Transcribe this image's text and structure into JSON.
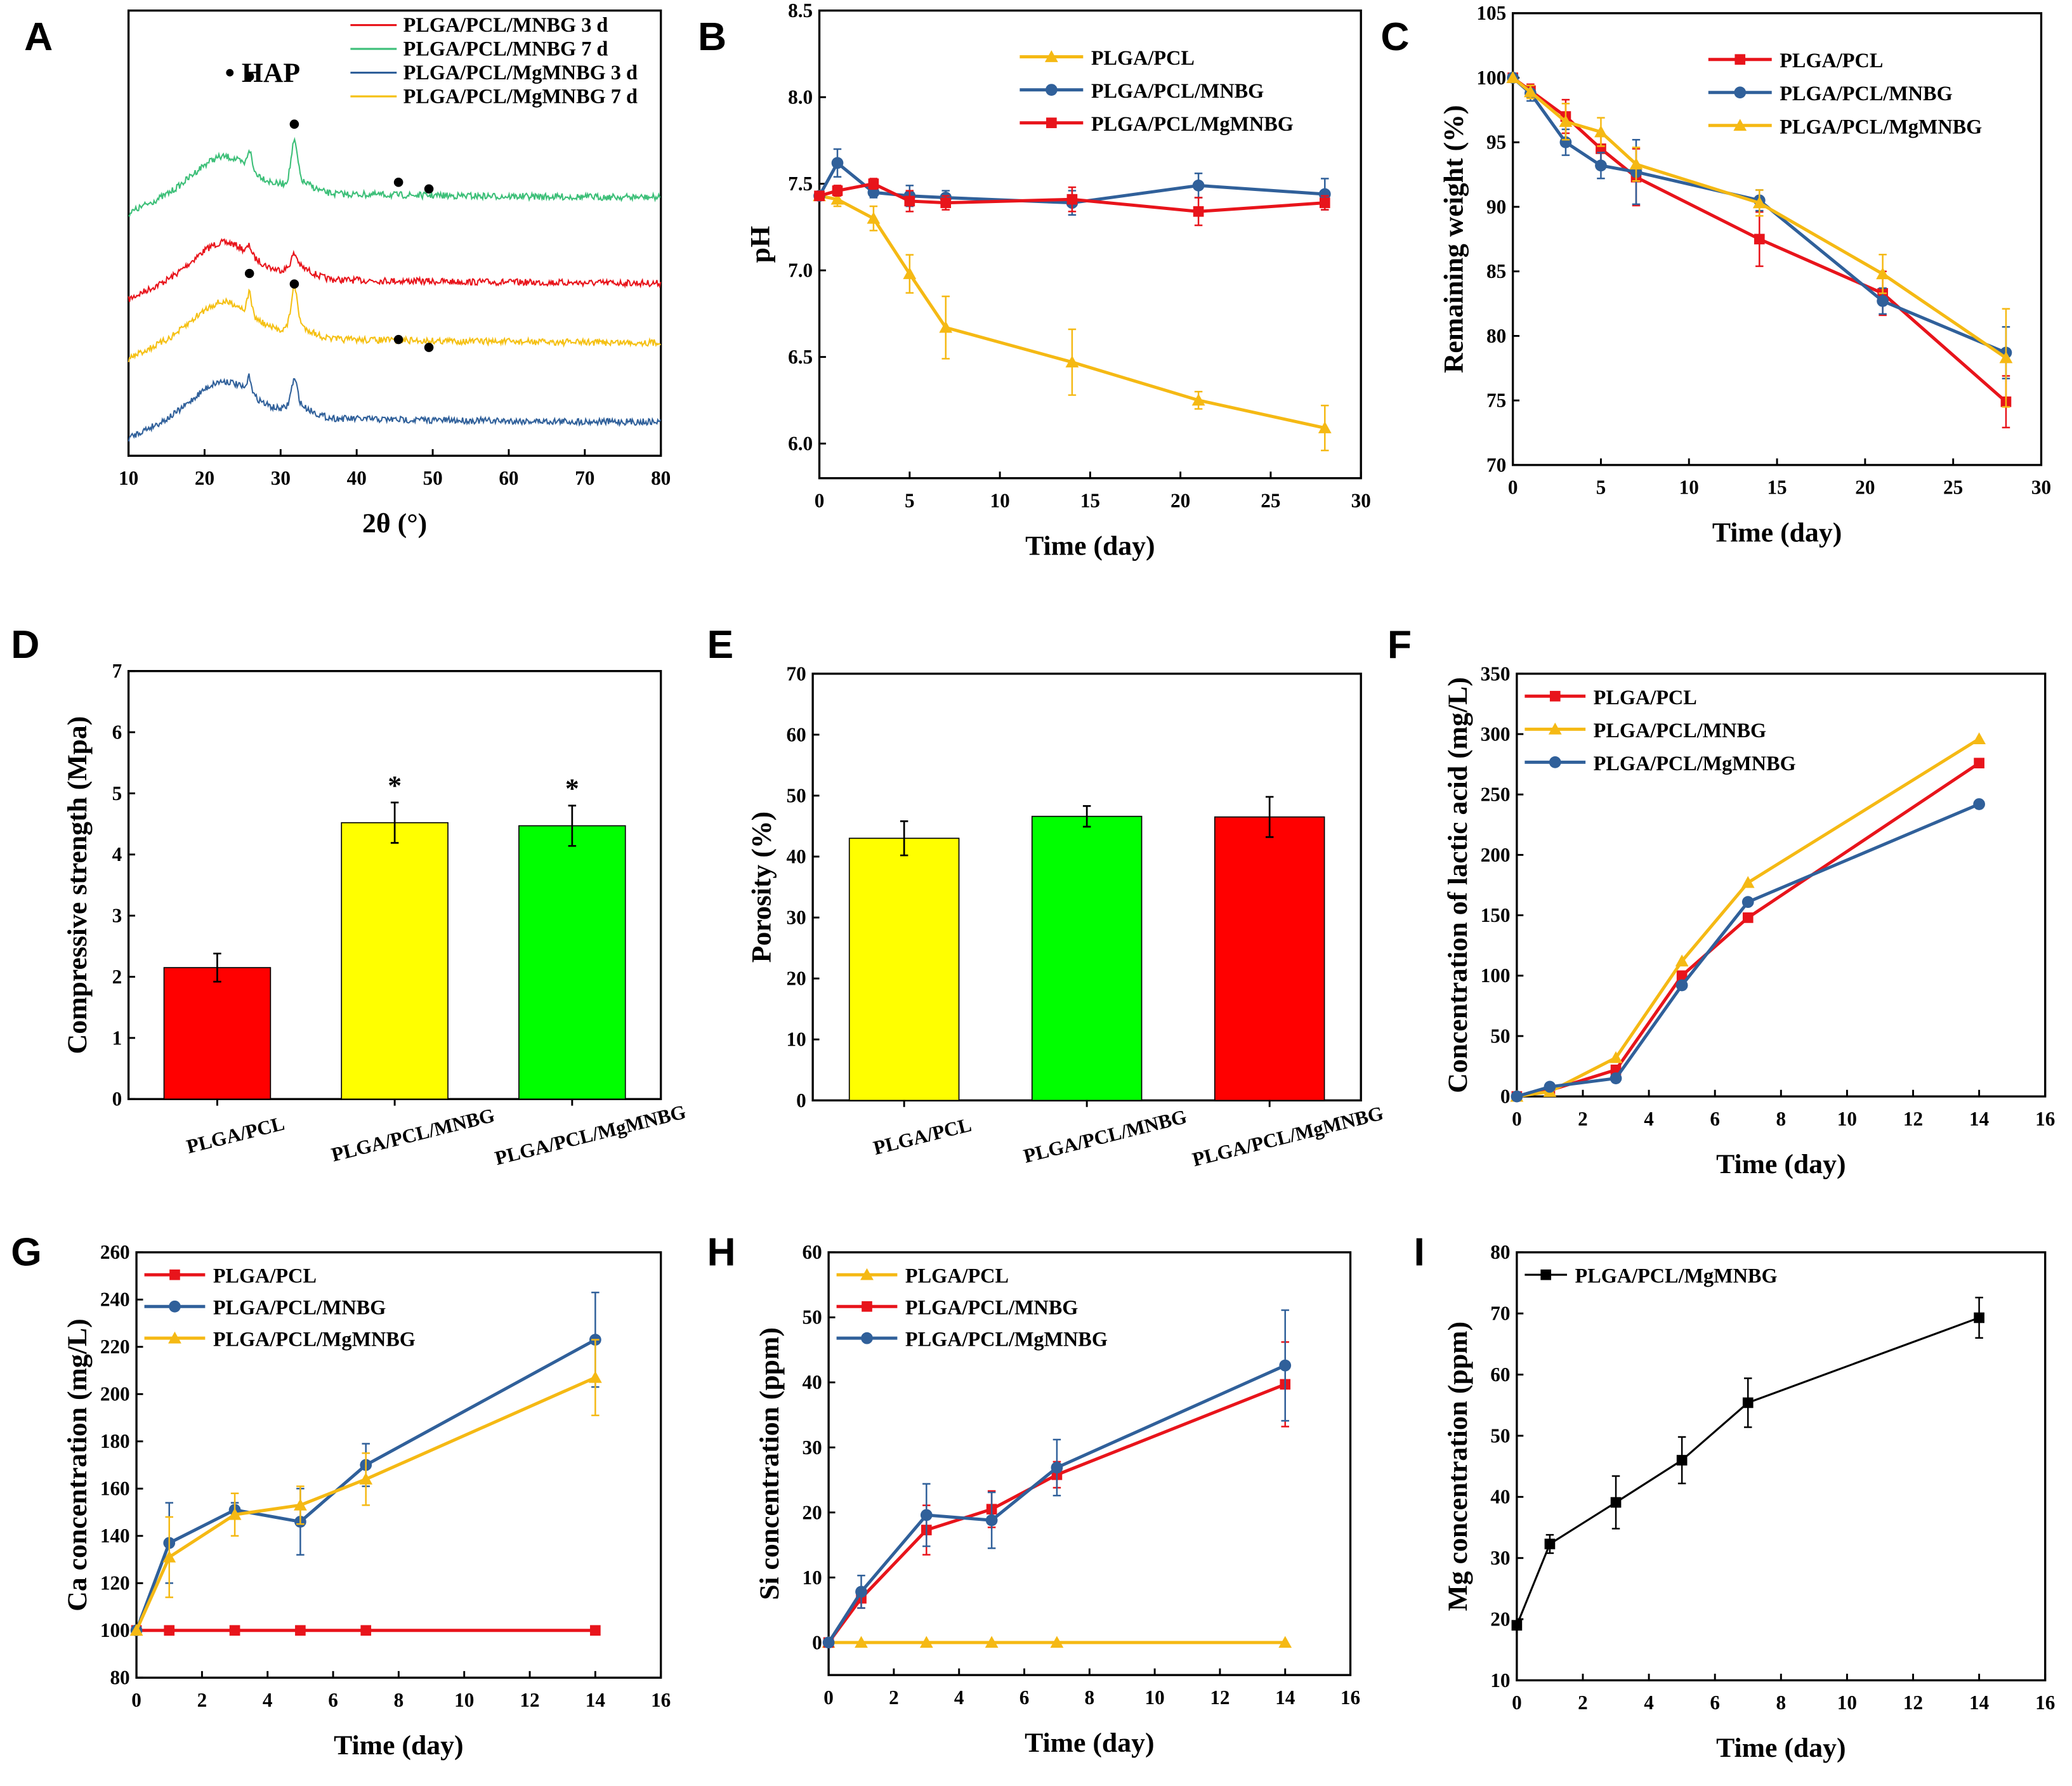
{
  "chart_data": [
    {
      "panel": "A",
      "type": "line",
      "xlabel": "2θ (°)",
      "ylabel": "",
      "xlim": [
        10,
        80
      ],
      "xticks": [
        "10",
        "20",
        "30",
        "40",
        "50",
        "60",
        "70",
        "80"
      ],
      "yticks": [],
      "legend_placement": "top-right",
      "grid": false,
      "annotation": "• HAP",
      "hap_peaks": [
        25.9,
        31.8,
        45.5,
        49.5
      ],
      "series": [
        {
          "name": "PLGA/PCL/MNBG 3 d",
          "color": "#e8141b"
        },
        {
          "name": "PLGA/PCL/MNBG 7 d",
          "color": "#3cbf78"
        },
        {
          "name": "PLGA/PCL/MgMNBG 3 d",
          "color": "#30609a"
        },
        {
          "name": "PLGA/PCL/MgMNBG 7 d",
          "color": "#f5c013"
        }
      ]
    },
    {
      "panel": "B",
      "type": "line",
      "xlabel": "Time (day)",
      "ylabel": "pH",
      "xlim": [
        0,
        30
      ],
      "ylim": [
        5.8,
        8.5
      ],
      "xticks": [
        "0",
        "5",
        "10",
        "15",
        "20",
        "25",
        "30"
      ],
      "yticks": [
        "6.0",
        "6.5",
        "7.0",
        "7.5",
        "8.0",
        "8.5"
      ],
      "legend_placement": "top-right",
      "grid": false,
      "x": [
        0,
        1,
        3,
        5,
        7,
        14,
        21,
        28
      ],
      "series": [
        {
          "name": "PLGA/PCL",
          "color": "#f5b914",
          "marker": "triangle",
          "values": [
            7.43,
            7.41,
            7.3,
            6.98,
            6.67,
            6.47,
            6.25,
            6.09
          ],
          "errors": [
            0.02,
            0.04,
            0.07,
            0.11,
            0.18,
            0.19,
            0.05,
            0.13
          ]
        },
        {
          "name": "PLGA/PCL/MNBG",
          "color": "#30609a",
          "marker": "circle",
          "values": [
            7.43,
            7.62,
            7.45,
            7.43,
            7.42,
            7.39,
            7.49,
            7.44
          ],
          "errors": [
            0,
            0.08,
            0.03,
            0.06,
            0.04,
            0.07,
            0.07,
            0.09
          ]
        },
        {
          "name": "PLGA/PCL/MgMNBG",
          "color": "#e8141b",
          "marker": "square",
          "values": [
            7.43,
            7.46,
            7.5,
            7.4,
            7.39,
            7.41,
            7.34,
            7.39
          ],
          "errors": [
            0,
            0.03,
            0.03,
            0.06,
            0.04,
            0.07,
            0.08,
            0.04
          ]
        }
      ]
    },
    {
      "panel": "C",
      "type": "line",
      "xlabel": "Time (day)",
      "ylabel": "Remaining weight (%)",
      "xlim": [
        0,
        30
      ],
      "ylim": [
        70,
        105
      ],
      "xticks": [
        "0",
        "5",
        "10",
        "15",
        "20",
        "25",
        "30"
      ],
      "yticks": [
        "70",
        "75",
        "80",
        "85",
        "90",
        "95",
        "100",
        "105"
      ],
      "legend_placement": "top-right",
      "grid": false,
      "x": [
        0,
        1,
        3,
        5,
        7,
        14,
        21,
        28
      ],
      "series": [
        {
          "name": "PLGA/PCL",
          "color": "#e8141b",
          "marker": "square",
          "values": [
            100,
            99,
            97,
            94.5,
            92.3,
            87.5,
            83.3,
            74.9
          ],
          "errors": [
            0,
            0.5,
            1.3,
            1.1,
            2.2,
            2.1,
            1.7,
            2.0
          ]
        },
        {
          "name": "PLGA/PCL/MNBG",
          "color": "#30609a",
          "marker": "circle",
          "values": [
            100,
            98.8,
            95,
            93.2,
            92.7,
            90.5,
            82.7,
            78.7
          ],
          "errors": [
            0,
            0.6,
            1.0,
            1.0,
            2.5,
            0.8,
            1.0,
            2.0
          ]
        },
        {
          "name": "PLGA/PCL/MgMNBG",
          "color": "#f5b914",
          "marker": "triangle",
          "values": [
            100,
            98.9,
            96.6,
            95.8,
            93.3,
            90.3,
            84.8,
            78.3
          ],
          "errors": [
            0,
            0.5,
            1.4,
            1.1,
            1.3,
            1.0,
            1.5,
            3.8
          ]
        }
      ]
    },
    {
      "panel": "D",
      "type": "bar",
      "xlabel": "",
      "ylabel": "Compressive strength (Mpa)",
      "ylim": [
        0,
        7
      ],
      "yticks": [
        "0",
        "1",
        "2",
        "3",
        "4",
        "5",
        "6",
        "7"
      ],
      "categories": [
        "PLGA/PCL",
        "PLGA/PCL/MNBG",
        "PLGA/PCL/MgMNBG"
      ],
      "values": [
        2.15,
        4.52,
        4.47
      ],
      "errors": [
        0.23,
        0.33,
        0.33
      ],
      "colors": [
        "#ff0000",
        "#ffff00",
        "#00ff00"
      ],
      "significance": [
        "",
        "*",
        "*"
      ],
      "grid": false
    },
    {
      "panel": "E",
      "type": "bar",
      "xlabel": "",
      "ylabel": "Porosity (%)",
      "ylim": [
        0,
        70
      ],
      "yticks": [
        "0",
        "10",
        "20",
        "30",
        "40",
        "50",
        "60",
        "70"
      ],
      "categories": [
        "PLGA/PCL",
        "PLGA/PCL/MNBG",
        "PLGA/PCL/MgMNBG"
      ],
      "values": [
        43.0,
        46.6,
        46.5
      ],
      "errors": [
        2.8,
        1.7,
        3.3
      ],
      "colors": [
        "#ffff00",
        "#00ff00",
        "#ff0000"
      ],
      "significance": [
        "",
        "",
        ""
      ],
      "grid": false
    },
    {
      "panel": "F",
      "type": "line",
      "xlabel": "Time (day)",
      "ylabel": "Concentration of lactic acid (mg/L)",
      "xlim": [
        0,
        16
      ],
      "ylim": [
        0,
        350
      ],
      "xticks": [
        "0",
        "2",
        "4",
        "6",
        "8",
        "10",
        "12",
        "14",
        "16"
      ],
      "yticks": [
        "0",
        "50",
        "100",
        "150",
        "200",
        "250",
        "300",
        "350"
      ],
      "legend_placement": "top-left",
      "grid": false,
      "x": [
        0,
        1,
        3,
        5,
        7,
        14
      ],
      "series": [
        {
          "name": "PLGA/PCL",
          "color": "#e8141b",
          "marker": "square",
          "values": [
            0,
            5,
            22,
            100,
            148,
            276
          ],
          "errors": [
            0,
            0,
            0,
            0,
            0,
            0
          ]
        },
        {
          "name": "PLGA/PCL/MNBG",
          "color": "#f5b914",
          "marker": "triangle",
          "values": [
            0,
            4,
            32,
            112,
            177,
            296
          ],
          "errors": [
            0,
            0,
            0,
            0,
            0,
            0
          ]
        },
        {
          "name": "PLGA/PCL/MgMNBG",
          "color": "#30609a",
          "marker": "circle",
          "values": [
            0,
            8,
            15,
            92,
            161,
            242
          ],
          "errors": [
            0,
            0,
            0,
            0,
            0,
            0
          ]
        }
      ]
    },
    {
      "panel": "G",
      "type": "line",
      "xlabel": "Time (day)",
      "ylabel": "Ca concentration (mg/L)",
      "xlim": [
        0,
        16
      ],
      "ylim": [
        80,
        260
      ],
      "xticks": [
        "0",
        "2",
        "4",
        "6",
        "8",
        "10",
        "12",
        "14",
        "16"
      ],
      "yticks": [
        "80",
        "100",
        "120",
        "140",
        "160",
        "180",
        "200",
        "220",
        "240",
        "260"
      ],
      "legend_placement": "top-left",
      "grid": false,
      "x": [
        0,
        1,
        3,
        5,
        7,
        14
      ],
      "series": [
        {
          "name": "PLGA/PCL",
          "color": "#e8141b",
          "marker": "square",
          "values": [
            100,
            100,
            100,
            100,
            100,
            100
          ],
          "errors": [
            0,
            0,
            0,
            0,
            0,
            0
          ]
        },
        {
          "name": "PLGA/PCL/MNBG",
          "color": "#30609a",
          "marker": "circle",
          "values": [
            100,
            137,
            151,
            146,
            170,
            223
          ],
          "errors": [
            0,
            17,
            3,
            14,
            9,
            20
          ]
        },
        {
          "name": "PLGA/PCL/MgMNBG",
          "color": "#f5b914",
          "marker": "triangle",
          "values": [
            100,
            131,
            149,
            153,
            164,
            207
          ],
          "errors": [
            0,
            17,
            9,
            8,
            11,
            16
          ]
        }
      ]
    },
    {
      "panel": "H",
      "type": "line",
      "xlabel": "Time (day)",
      "ylabel": "Si concentration (ppm)",
      "xlim": [
        0,
        16
      ],
      "ylim": [
        -5,
        60
      ],
      "xticks": [
        "0",
        "2",
        "4",
        "6",
        "8",
        "10",
        "12",
        "14",
        "16"
      ],
      "yticks": [
        "0",
        "10",
        "20",
        "30",
        "40",
        "50",
        "60"
      ],
      "legend_placement": "top-left",
      "grid": false,
      "x": [
        0,
        1,
        3,
        5,
        7,
        14
      ],
      "series": [
        {
          "name": "PLGA/PCL",
          "color": "#f5b914",
          "marker": "triangle",
          "values": [
            0,
            0,
            0,
            0,
            0,
            0
          ],
          "errors": [
            0,
            0,
            0,
            0,
            0,
            0
          ]
        },
        {
          "name": "PLGA/PCL/MNBG",
          "color": "#e8141b",
          "marker": "square",
          "values": [
            0,
            6.8,
            17.3,
            20.5,
            25.8,
            39.7
          ],
          "errors": [
            0,
            1.5,
            3.8,
            2.8,
            2.0,
            6.5
          ]
        },
        {
          "name": "PLGA/PCL/MgMNBG",
          "color": "#30609a",
          "marker": "circle",
          "values": [
            0,
            7.8,
            19.6,
            18.8,
            26.9,
            42.6
          ],
          "errors": [
            0,
            2.5,
            4.8,
            4.3,
            4.3,
            8.5
          ]
        }
      ]
    },
    {
      "panel": "I",
      "type": "line",
      "xlabel": "Time (day)",
      "ylabel": "Mg concentration (ppm)",
      "xlim": [
        0,
        16
      ],
      "ylim": [
        10,
        80
      ],
      "xticks": [
        "0",
        "2",
        "4",
        "6",
        "8",
        "10",
        "12",
        "14",
        "16"
      ],
      "yticks": [
        "10",
        "20",
        "30",
        "40",
        "50",
        "60",
        "70",
        "80"
      ],
      "legend_placement": "top-left",
      "grid": false,
      "x": [
        0,
        1,
        3,
        5,
        7,
        14
      ],
      "series": [
        {
          "name": "PLGA/PCL/MgMNBG",
          "color": "#000000",
          "marker": "square",
          "values": [
            19,
            32.3,
            39.1,
            46,
            55.4,
            69.3
          ],
          "errors": [
            0.5,
            1.5,
            4.3,
            3.8,
            4.0,
            3.3
          ]
        }
      ]
    }
  ]
}
